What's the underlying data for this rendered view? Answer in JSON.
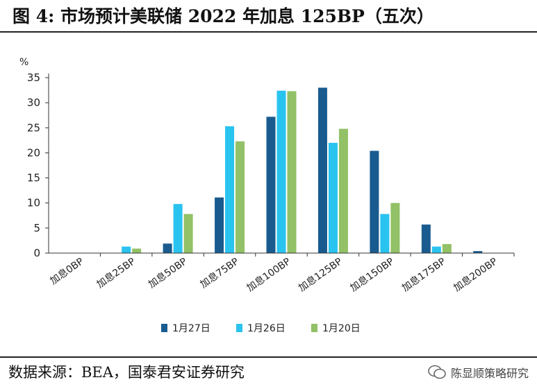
{
  "header": {
    "title": "图 4:  市场预计美联储 2022 年加息 125BP（五次）"
  },
  "footer": {
    "source": "数据来源：BEA，国泰君安证券研究",
    "watermark": "陈显顺策略研究"
  },
  "chart_data": {
    "type": "bar",
    "title": "图 4:  市场预计美联储 2022 年加息 125BP（五次）",
    "ylabel": "%",
    "xlabel": "",
    "ylim": [
      0,
      35
    ],
    "yticks": [
      0,
      5,
      10,
      15,
      20,
      25,
      30,
      35
    ],
    "grid": false,
    "legend_position": "bottom",
    "categories": [
      "加息0BP",
      "加息25BP",
      "加息50BP",
      "加息75BP",
      "加息100BP",
      "加息125BP",
      "加息150BP",
      "加息175BP",
      "加息200BP"
    ],
    "series": [
      {
        "name": "1月27日",
        "color": "#1a5b8f",
        "values": [
          0,
          0,
          1.9,
          11.1,
          27.2,
          33.0,
          20.4,
          5.7,
          0.4
        ]
      },
      {
        "name": "1月26日",
        "color": "#29c3f0",
        "values": [
          0,
          1.3,
          9.8,
          25.3,
          32.4,
          22.0,
          7.8,
          1.3,
          0
        ]
      },
      {
        "name": "1月20日",
        "color": "#92c167",
        "values": [
          0,
          0.9,
          7.8,
          22.3,
          32.3,
          24.8,
          10.0,
          1.8,
          0
        ]
      }
    ]
  }
}
